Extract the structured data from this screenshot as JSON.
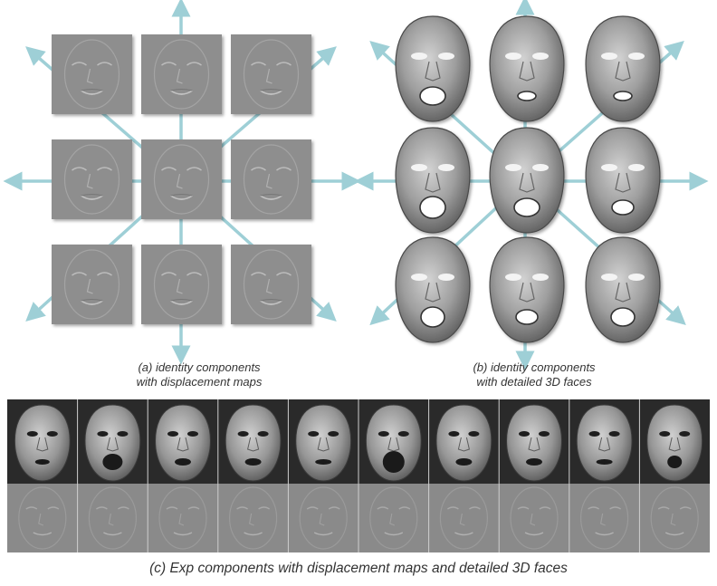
{
  "panel_a": {
    "caption_line1": "(a) identity components",
    "caption_line2": "with displacement maps",
    "grid_rows": 3,
    "grid_cols": 3,
    "arrow_color": "#9ecfd6",
    "tile_color": "#8e8e8e"
  },
  "panel_b": {
    "caption_line1": "(b) identity components",
    "caption_line2": "with detailed 3D faces",
    "grid_rows": 3,
    "grid_cols": 3,
    "arrow_color": "#9ecfd6",
    "face_color": "#9d9d9d"
  },
  "panel_c": {
    "caption": "(c) Exp components with displacement maps and detailed 3D faces",
    "columns": 10,
    "rows": 2,
    "top_row_background": "#2a2a2a",
    "bottom_row_background": "#8a8a8a"
  }
}
